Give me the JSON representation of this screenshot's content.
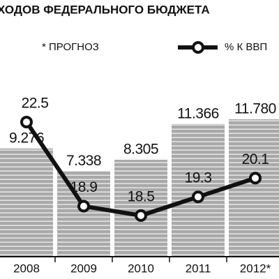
{
  "chart_data": {
    "type": "bar-line",
    "title": "ХОДОВ ФЕДЕРАЛЬНОГО БЮДЖЕТА",
    "note": "* ПРОГНОЗ",
    "categories": [
      "2008",
      "2009",
      "2010",
      "2011",
      "2012*"
    ],
    "series": [
      {
        "type": "bar",
        "color": "#aaaaaa",
        "values": [
          9.276,
          7.338,
          8.305,
          11.366,
          11.78
        ],
        "value_labels": [
          "9.276",
          "7.338",
          "8.305",
          "11.366",
          "11.780"
        ]
      },
      {
        "type": "line",
        "name": "% К ВВП",
        "axis": "y2",
        "color": "#111111",
        "values": [
          22.5,
          18.9,
          18.5,
          19.3,
          20.1
        ]
      }
    ],
    "ylim": [
      0,
      22
    ],
    "y2lim": [
      16.74,
      27.72
    ]
  }
}
